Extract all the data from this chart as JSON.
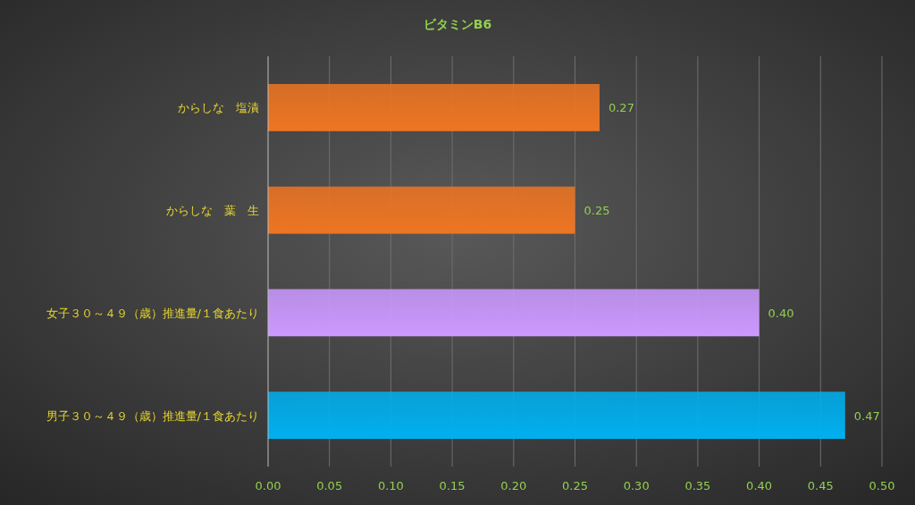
{
  "chart_data": {
    "type": "bar",
    "orientation": "horizontal",
    "title": "ビタミンB6",
    "categories": [
      "からしな　塩漬",
      "からしな　葉　生",
      "女子３０～４９（歳）推進量/１食あたり",
      "男子３０～４９（歳）推進量/１食あたり"
    ],
    "values": [
      0.27,
      0.25,
      0.4,
      0.47
    ],
    "colors": [
      "#ee7522",
      "#ee7522",
      "#cc99ff",
      "#00b0f0"
    ],
    "value_labels": [
      "0.27",
      "0.25",
      "0.40",
      "0.47"
    ],
    "xlim": [
      0,
      0.5
    ],
    "xticks": [
      {
        "value": 0,
        "label": "0.00"
      },
      {
        "value": 0.05,
        "label": "0.05"
      },
      {
        "value": 0.1,
        "label": "0.10"
      },
      {
        "value": 0.15,
        "label": "0.15"
      },
      {
        "value": 0.2,
        "label": "0.20"
      },
      {
        "value": 0.25,
        "label": "0.25"
      },
      {
        "value": 0.3,
        "label": "0.30"
      },
      {
        "value": 0.35,
        "label": "0.35"
      },
      {
        "value": 0.4,
        "label": "0.40"
      },
      {
        "value": 0.45,
        "label": "0.45"
      },
      {
        "value": 0.5,
        "label": "0.50"
      }
    ],
    "grid": "x"
  }
}
